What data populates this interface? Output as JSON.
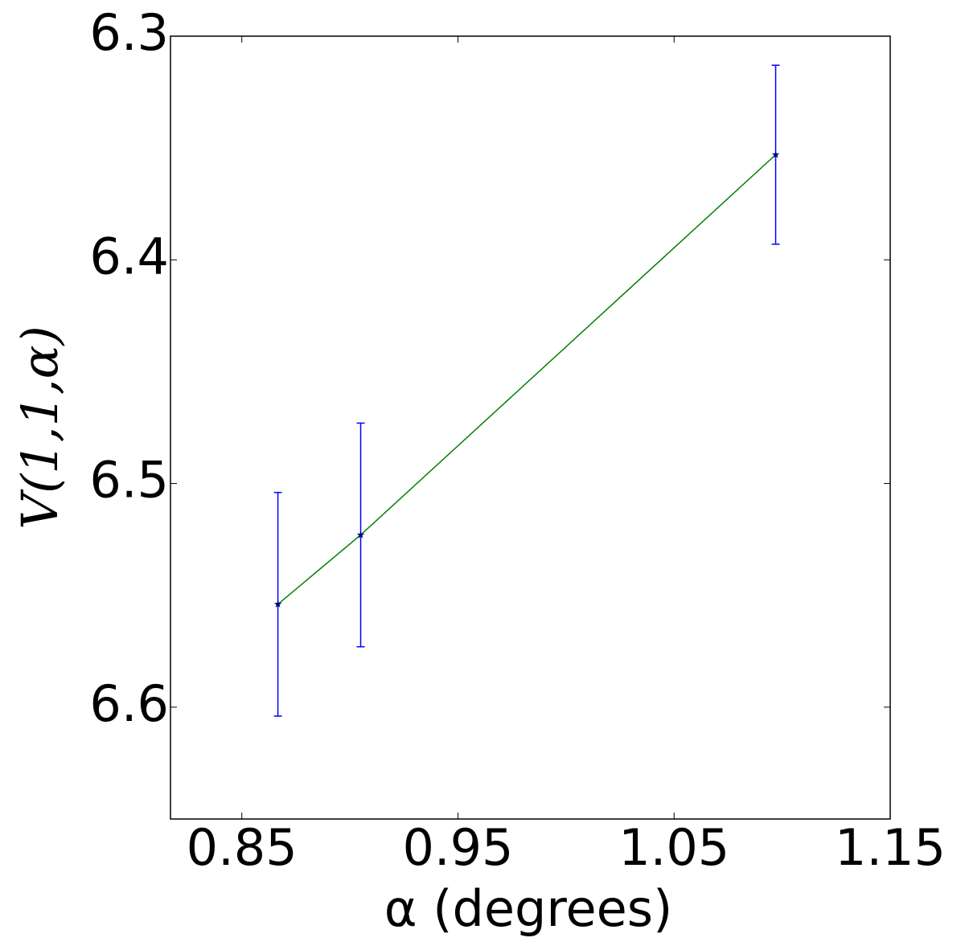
{
  "chart_data": {
    "type": "errorbar",
    "xlabel": "α (degrees)",
    "ylabel": "V(1,1,α)",
    "x": [
      0.8667,
      0.905,
      1.097
    ],
    "series": [
      {
        "values": [
          6.554,
          6.523,
          6.353
        ],
        "errors": [
          0.05,
          0.05,
          0.04
        ],
        "color": "#008000",
        "error_color": "#0000ff",
        "marker_color": "#000080"
      }
    ],
    "xlim": [
      0.817,
      1.15
    ],
    "xticks": [
      0.85,
      0.95,
      1.05,
      1.15
    ],
    "ylim": [
      6.65,
      6.3
    ],
    "yticks": [
      6.3,
      6.4,
      6.5,
      6.6
    ],
    "grid": false
  }
}
